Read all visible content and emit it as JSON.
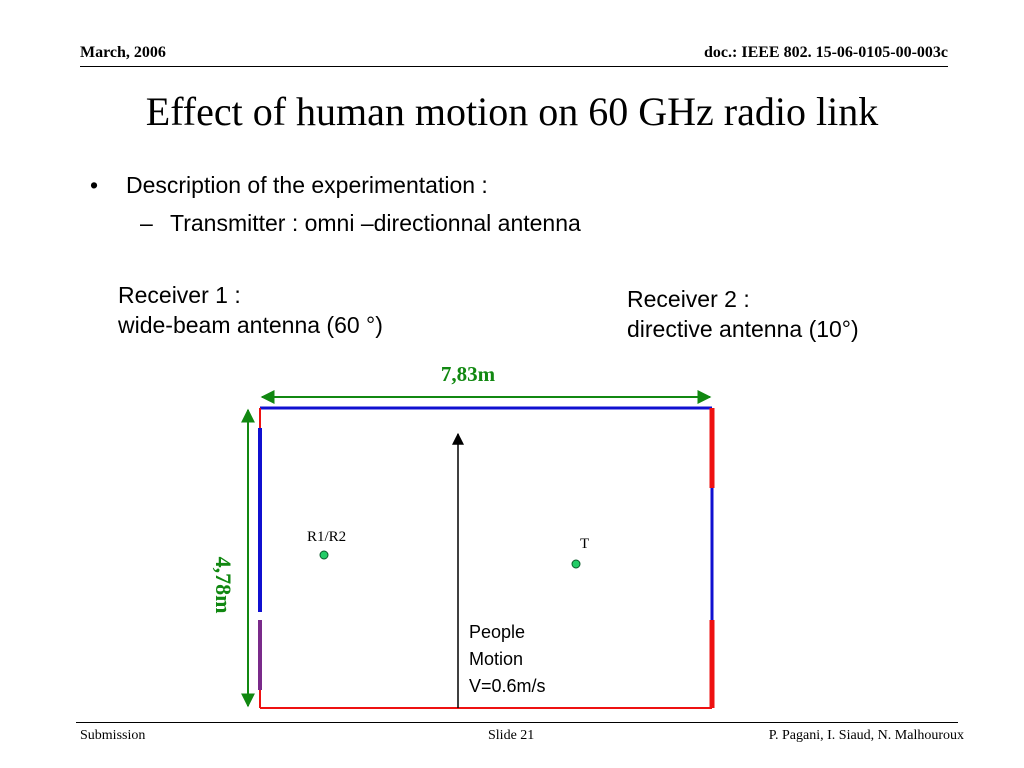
{
  "header": {
    "date": "March, 2006",
    "doc_id": "doc.: IEEE 802. 15-06-0105-00-003c"
  },
  "title": "Effect of human motion on 60 GHz radio link",
  "bullets": {
    "level1": "Description of the experimentation :",
    "level2": "Transmitter : omni –directionnal antenna"
  },
  "receiver1": {
    "line1": "Receiver 1 :",
    "line2": "wide-beam antenna (60 °)"
  },
  "receiver2": {
    "line1": "Receiver 2 :",
    "line2": "directive antenna (10°)"
  },
  "diagram": {
    "width_label": "7,83m",
    "height_label": "4,78m",
    "receiver_label": "R1/R2",
    "transmitter_label": "T",
    "motion_label": {
      "line1": "People",
      "line2": "Motion",
      "line3": "V=0.6m/s"
    },
    "colors": {
      "dimension": "#118811",
      "wall_blue": "#1010d0",
      "wall_red": "#ee1111",
      "wall_purple": "#7a2a8a",
      "node": "#22cc66"
    }
  },
  "footer": {
    "left": "Submission",
    "center": "Slide 21",
    "right": "P. Pagani, I. Siaud, N. Malhouroux"
  }
}
